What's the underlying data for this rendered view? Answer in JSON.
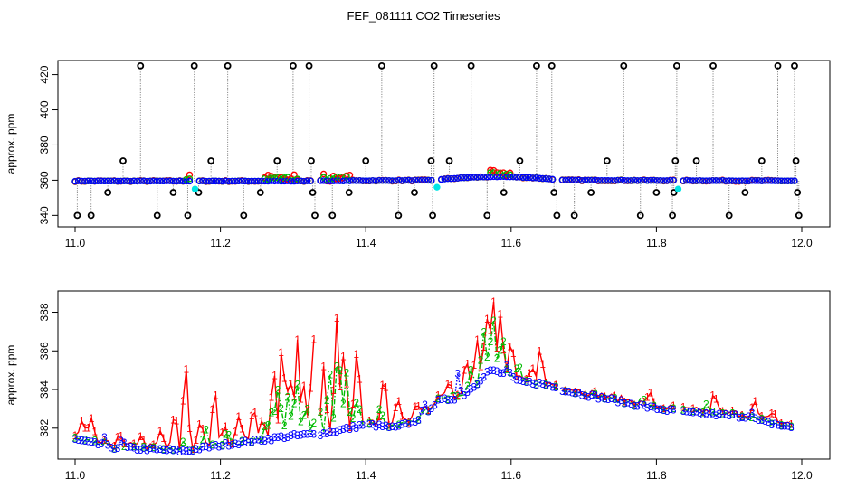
{
  "figure_title": "FEF_081111  CO2 Timeseries",
  "chart_data": [
    {
      "type": "scatter",
      "panel": "top",
      "ylabel": "approx. ppm",
      "xlim": [
        11.0,
        12.0
      ],
      "ylim": [
        333.5,
        428
      ],
      "x_ticks": [
        11.0,
        11.2,
        11.4,
        11.6,
        11.8,
        12.0
      ],
      "x_tick_labels": [
        "11.0",
        "11.2",
        "11.4",
        "11.6",
        "11.8",
        "12.0"
      ],
      "y_ticks": [
        340,
        360,
        380,
        400,
        420
      ],
      "y_tick_labels": [
        "340",
        "360",
        "380",
        "400",
        "420"
      ],
      "colors": {
        "baseline": "#0000ff",
        "red": "#ff0000",
        "green": "#00bb00",
        "spike": "#000000",
        "cyan": "#00e5e5"
      },
      "outlier_spikes": [
        {
          "x": 11.003,
          "y": 340
        },
        {
          "x": 11.022,
          "y": 340
        },
        {
          "x": 11.045,
          "y": 353
        },
        {
          "x": 11.066,
          "y": 371
        },
        {
          "x": 11.09,
          "y": 425
        },
        {
          "x": 11.113,
          "y": 340
        },
        {
          "x": 11.135,
          "y": 353
        },
        {
          "x": 11.155,
          "y": 340
        },
        {
          "x": 11.164,
          "y": 425
        },
        {
          "x": 11.17,
          "y": 353
        },
        {
          "x": 11.187,
          "y": 371
        },
        {
          "x": 11.21,
          "y": 425
        },
        {
          "x": 11.232,
          "y": 340
        },
        {
          "x": 11.255,
          "y": 353
        },
        {
          "x": 11.278,
          "y": 371
        },
        {
          "x": 11.3,
          "y": 425
        },
        {
          "x": 11.322,
          "y": 425
        },
        {
          "x": 11.325,
          "y": 371
        },
        {
          "x": 11.327,
          "y": 353
        },
        {
          "x": 11.33,
          "y": 340
        },
        {
          "x": 11.354,
          "y": 340
        },
        {
          "x": 11.377,
          "y": 353
        },
        {
          "x": 11.4,
          "y": 371
        },
        {
          "x": 11.422,
          "y": 425
        },
        {
          "x": 11.445,
          "y": 340
        },
        {
          "x": 11.467,
          "y": 353
        },
        {
          "x": 11.49,
          "y": 371
        },
        {
          "x": 11.492,
          "y": 340
        },
        {
          "x": 11.494,
          "y": 425
        },
        {
          "x": 11.515,
          "y": 371
        },
        {
          "x": 11.545,
          "y": 425
        },
        {
          "x": 11.567,
          "y": 340
        },
        {
          "x": 11.59,
          "y": 353
        },
        {
          "x": 11.612,
          "y": 371
        },
        {
          "x": 11.635,
          "y": 425
        },
        {
          "x": 11.656,
          "y": 425
        },
        {
          "x": 11.659,
          "y": 353
        },
        {
          "x": 11.663,
          "y": 340
        },
        {
          "x": 11.687,
          "y": 340
        },
        {
          "x": 11.71,
          "y": 353
        },
        {
          "x": 11.732,
          "y": 371
        },
        {
          "x": 11.755,
          "y": 425
        },
        {
          "x": 11.778,
          "y": 340
        },
        {
          "x": 11.8,
          "y": 353
        },
        {
          "x": 11.822,
          "y": 340
        },
        {
          "x": 11.824,
          "y": 353
        },
        {
          "x": 11.826,
          "y": 371
        },
        {
          "x": 11.828,
          "y": 425
        },
        {
          "x": 11.855,
          "y": 371
        },
        {
          "x": 11.878,
          "y": 425
        },
        {
          "x": 11.9,
          "y": 340
        },
        {
          "x": 11.922,
          "y": 353
        },
        {
          "x": 11.945,
          "y": 371
        },
        {
          "x": 11.967,
          "y": 425
        },
        {
          "x": 11.99,
          "y": 425
        },
        {
          "x": 11.992,
          "y": 371
        },
        {
          "x": 11.994,
          "y": 353
        },
        {
          "x": 11.996,
          "y": 340
        }
      ],
      "cyan_points": [
        {
          "x": 11.165,
          "y": 355
        },
        {
          "x": 11.498,
          "y": 356
        },
        {
          "x": 11.83,
          "y": 355
        }
      ],
      "gaps_x": [
        11.166,
        11.332,
        11.499,
        11.665,
        11.831,
        11.998
      ]
    },
    {
      "type": "line",
      "panel": "bottom",
      "ylabel": "approx. ppm",
      "xlim": [
        11.0,
        12.0
      ],
      "ylim": [
        380.4,
        389.1
      ],
      "x_ticks": [
        11.0,
        11.2,
        11.4,
        11.6,
        11.8,
        12.0
      ],
      "x_tick_labels": [
        "11.0",
        "11.2",
        "11.4",
        "11.6",
        "11.8",
        "12.0"
      ],
      "y_ticks": [
        382,
        384,
        386,
        388
      ],
      "y_tick_labels": [
        "382",
        "384",
        "386",
        "388"
      ],
      "series": [
        {
          "name": "1",
          "color": "#ff0000",
          "dash": "solid"
        },
        {
          "name": "2",
          "color": "#00bb00",
          "dash": "dashdot"
        },
        {
          "name": "3",
          "color": "#0000ff",
          "dash": "dotted"
        }
      ],
      "baseline_knots": [
        [
          11.0,
          381.4
        ],
        [
          11.05,
          381.0
        ],
        [
          11.1,
          380.9
        ],
        [
          11.15,
          380.8
        ],
        [
          11.18,
          381.0
        ],
        [
          11.22,
          381.2
        ],
        [
          11.26,
          381.4
        ],
        [
          11.3,
          381.6
        ],
        [
          11.34,
          381.7
        ],
        [
          11.38,
          382.0
        ],
        [
          11.4,
          382.2
        ],
        [
          11.44,
          382.0
        ],
        [
          11.47,
          382.4
        ],
        [
          11.5,
          383.4
        ],
        [
          11.53,
          383.6
        ],
        [
          11.55,
          384.2
        ],
        [
          11.57,
          385.0
        ],
        [
          11.59,
          384.8
        ],
        [
          11.61,
          384.4
        ],
        [
          11.64,
          384.3
        ],
        [
          11.68,
          383.9
        ],
        [
          11.72,
          383.6
        ],
        [
          11.76,
          383.3
        ],
        [
          11.8,
          383.0
        ],
        [
          11.84,
          382.8
        ],
        [
          11.88,
          382.7
        ],
        [
          11.92,
          382.6
        ],
        [
          11.95,
          382.3
        ],
        [
          11.99,
          382.0
        ]
      ],
      "red_spikes": [
        [
          11.01,
          1.0
        ],
        [
          11.022,
          1.1
        ],
        [
          11.06,
          0.6
        ],
        [
          11.09,
          0.6
        ],
        [
          11.118,
          0.9
        ],
        [
          11.137,
          2.0
        ],
        [
          11.152,
          4.8
        ],
        [
          11.172,
          1.4
        ],
        [
          11.192,
          3.0
        ],
        [
          11.205,
          0.9
        ],
        [
          11.225,
          1.4
        ],
        [
          11.245,
          1.8
        ],
        [
          11.258,
          1.2
        ],
        [
          11.273,
          3.8
        ],
        [
          11.285,
          5.3
        ],
        [
          11.295,
          3.5
        ],
        [
          11.306,
          4.8
        ],
        [
          11.315,
          2.3
        ],
        [
          11.328,
          5.1
        ],
        [
          11.342,
          3.3
        ],
        [
          11.36,
          5.8
        ],
        [
          11.37,
          4.2
        ],
        [
          11.388,
          4.4
        ],
        [
          11.425,
          2.8
        ],
        [
          11.444,
          1.4
        ],
        [
          11.47,
          1.0
        ],
        [
          11.515,
          1.0
        ],
        [
          11.538,
          1.9
        ],
        [
          11.553,
          2.4
        ],
        [
          11.566,
          3.0
        ],
        [
          11.575,
          3.9
        ],
        [
          11.585,
          2.9
        ],
        [
          11.6,
          1.8
        ],
        [
          11.63,
          0.7
        ],
        [
          11.64,
          1.7
        ],
        [
          11.79,
          0.7
        ],
        [
          11.88,
          1.1
        ],
        [
          11.935,
          0.8
        ],
        [
          11.96,
          0.6
        ]
      ],
      "green_spikes": [
        [
          11.15,
          0.5
        ],
        [
          11.18,
          0.8
        ],
        [
          11.21,
          0.7
        ],
        [
          11.263,
          1.0
        ],
        [
          11.272,
          2.0
        ],
        [
          11.28,
          2.8
        ],
        [
          11.293,
          2.2
        ],
        [
          11.305,
          3.0
        ],
        [
          11.318,
          1.6
        ],
        [
          11.334,
          2.4
        ],
        [
          11.35,
          3.4
        ],
        [
          11.362,
          4.7
        ],
        [
          11.373,
          3.0
        ],
        [
          11.388,
          1.5
        ],
        [
          11.42,
          0.9
        ],
        [
          11.52,
          0.5
        ],
        [
          11.545,
          1.0
        ],
        [
          11.562,
          2.5
        ],
        [
          11.575,
          2.9
        ],
        [
          11.588,
          2.0
        ],
        [
          11.61,
          0.8
        ],
        [
          11.78,
          0.4
        ],
        [
          11.87,
          0.5
        ]
      ],
      "blue_spikes": [
        [
          11.527,
          1.4
        ],
        [
          11.48,
          0.5
        ],
        [
          11.595,
          0.7
        ],
        [
          11.93,
          0.4
        ],
        [
          11.04,
          0.4
        ],
        [
          11.065,
          0.5
        ]
      ],
      "gaps_x": [
        11.332,
        11.4,
        11.665,
        11.83
      ]
    }
  ]
}
